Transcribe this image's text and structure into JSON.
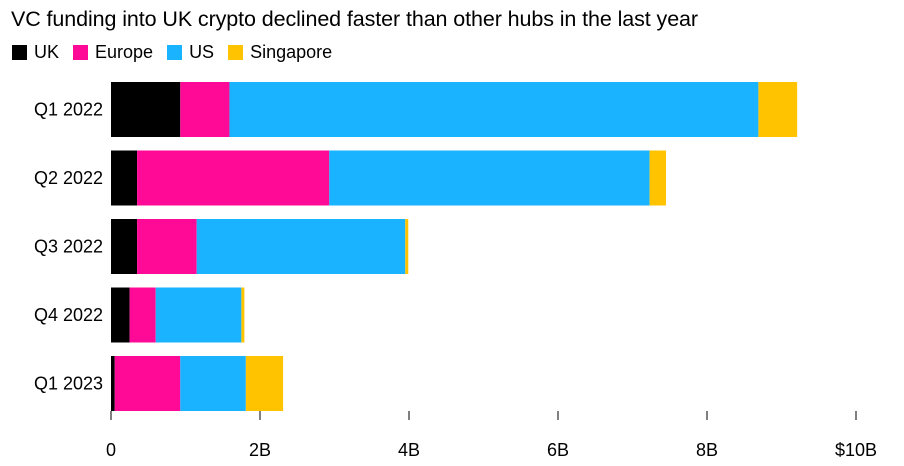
{
  "title": "VC funding into UK crypto declined faster than other hubs in the last year",
  "legend": [
    {
      "name": "UK",
      "color": "#000000"
    },
    {
      "name": "Europe",
      "color": "#ff0a96"
    },
    {
      "name": "US",
      "color": "#1ab3ff"
    },
    {
      "name": "Singapore",
      "color": "#ffc300"
    }
  ],
  "chart_data": {
    "type": "bar",
    "orientation": "horizontal",
    "stacked": true,
    "title": "VC funding into UK crypto declined faster than other hubs in the last year",
    "categories": [
      "Q1 2022",
      "Q2 2022",
      "Q3 2022",
      "Q4 2022",
      "Q1 2023"
    ],
    "series": [
      {
        "name": "UK",
        "color": "#000000",
        "values": [
          0.93,
          0.35,
          0.35,
          0.25,
          0.05
        ]
      },
      {
        "name": "Europe",
        "color": "#ff0a96",
        "values": [
          0.66,
          2.58,
          0.8,
          0.35,
          0.88
        ]
      },
      {
        "name": "US",
        "color": "#1ab3ff",
        "values": [
          7.1,
          4.3,
          2.8,
          1.15,
          0.88
        ]
      },
      {
        "name": "Singapore",
        "color": "#ffc300",
        "values": [
          0.52,
          0.22,
          0.04,
          0.04,
          0.5
        ]
      }
    ],
    "xlim": [
      0,
      10
    ],
    "xticks": [
      "0",
      "2B",
      "4B",
      "6B",
      "8B",
      "$10B"
    ],
    "xlabel": "",
    "ylabel": "",
    "grid": false,
    "legend_position": "top-left"
  }
}
